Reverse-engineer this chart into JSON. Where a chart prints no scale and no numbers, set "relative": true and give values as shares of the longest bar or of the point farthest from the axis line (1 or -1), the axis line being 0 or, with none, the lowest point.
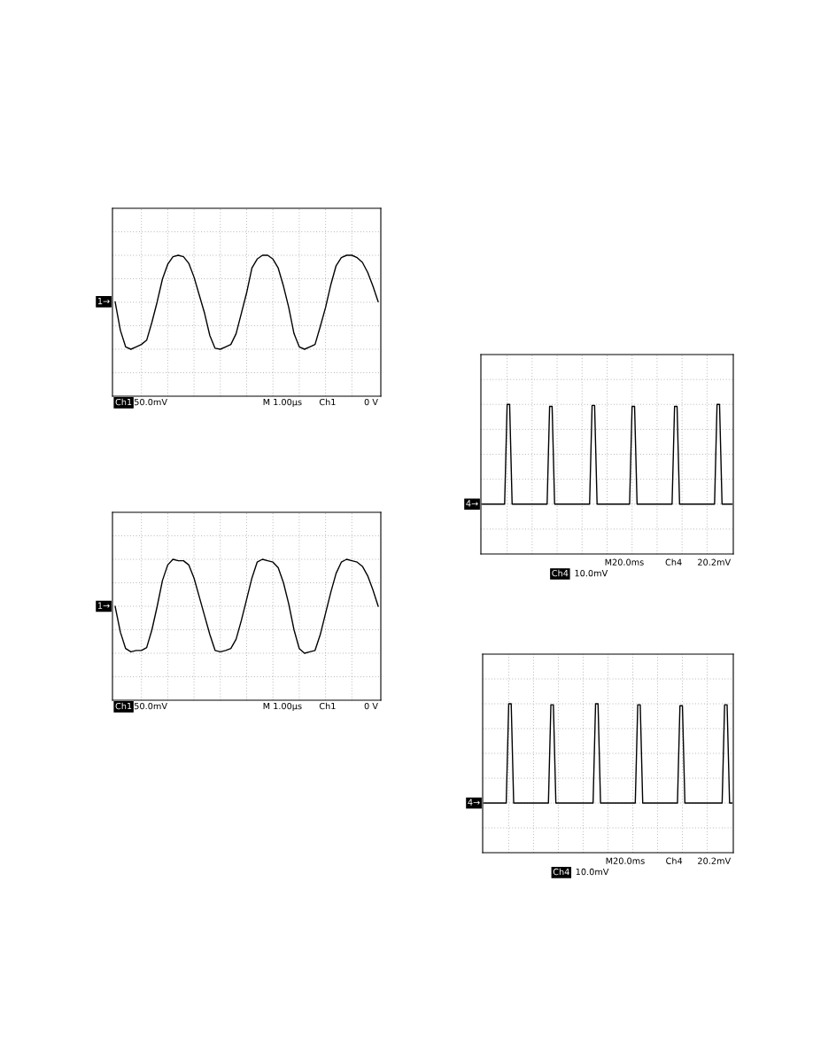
{
  "chart_data": [
    {
      "type": "line",
      "relative": true,
      "grid": true,
      "color": "#000000",
      "categories": [
        null,
        null,
        null,
        null,
        null,
        null,
        null,
        null,
        null,
        null,
        null,
        null,
        null,
        null,
        null,
        null,
        null,
        null,
        null,
        null,
        null,
        null,
        null,
        null,
        null,
        null,
        null,
        null,
        null,
        null,
        null,
        null,
        null,
        null,
        null,
        null,
        null,
        null,
        null,
        null,
        null,
        null,
        null,
        null,
        null,
        null,
        null,
        null,
        null,
        null,
        null
      ],
      "values": [
        0,
        -0.6,
        -0.95,
        -1,
        -0.95,
        -0.9,
        -0.81,
        -0.43,
        0,
        0.48,
        0.79,
        0.95,
        0.98,
        0.95,
        0.81,
        0.52,
        0.14,
        -0.24,
        -0.71,
        -0.98,
        -1,
        -0.95,
        -0.9,
        -0.67,
        -0.24,
        0.19,
        0.71,
        0.9,
        0.98,
        0.98,
        0.9,
        0.71,
        0.33,
        -0.12,
        -0.67,
        -0.95,
        -1,
        -0.95,
        -0.9,
        -0.52,
        -0.12,
        0.36,
        0.76,
        0.93,
        0.98,
        0.98,
        0.93,
        0.83,
        0.62,
        0.33,
        0
      ],
      "annotations": [
        "Ch1",
        "50.0mV",
        "M 1.00µs",
        "Ch1",
        "0 V",
        {
          "text": "1→",
          "y": 0
        }
      ]
    },
    {
      "type": "line",
      "relative": true,
      "grid": true,
      "color": "#000000",
      "categories": [
        null,
        null,
        null,
        null,
        null,
        null,
        null,
        null,
        null,
        null,
        null,
        null,
        null,
        null,
        null,
        null,
        null,
        null,
        null,
        null,
        null,
        null,
        null,
        null,
        null,
        null,
        null,
        null,
        null,
        null,
        null,
        null,
        null,
        null,
        null,
        null,
        null,
        null,
        null,
        null,
        null,
        null,
        null,
        null,
        null,
        null,
        null,
        null,
        null,
        null,
        null
      ],
      "values": [
        0,
        -0.55,
        -0.9,
        -0.97,
        -0.94,
        -0.94,
        -0.88,
        -0.5,
        0,
        0.55,
        0.88,
        1,
        0.97,
        0.97,
        0.88,
        0.6,
        0.2,
        -0.2,
        -0.6,
        -0.94,
        -0.97,
        -0.94,
        -0.9,
        -0.7,
        -0.3,
        0.15,
        0.6,
        0.94,
        1,
        0.97,
        0.94,
        0.82,
        0.5,
        0.05,
        -0.5,
        -0.9,
        -1,
        -0.97,
        -0.94,
        -0.6,
        -0.15,
        0.3,
        0.7,
        0.94,
        1,
        0.97,
        0.94,
        0.85,
        0.65,
        0.35,
        0
      ],
      "annotations": [
        "Ch1",
        "50.0mV",
        "M 1.00µs",
        "Ch1",
        "0 V",
        {
          "text": "1→",
          "y": 0
        }
      ]
    },
    {
      "type": "line",
      "relative": true,
      "grid": true,
      "color": "#000000",
      "categories": [
        null,
        null,
        null,
        null,
        null,
        null,
        null,
        null,
        null,
        null,
        null,
        null,
        null,
        null,
        null,
        null,
        null,
        null,
        null,
        null,
        null,
        null,
        null,
        null,
        null,
        null,
        null,
        null,
        null,
        null,
        null,
        null,
        null,
        null,
        null,
        null,
        null,
        null,
        null,
        null,
        null,
        null,
        null,
        null,
        null,
        null,
        null,
        null,
        null,
        null,
        null,
        null,
        null,
        null,
        null,
        null,
        null,
        null,
        null,
        null,
        null,
        null,
        null,
        null,
        null,
        null,
        null,
        null,
        null,
        null,
        null,
        null,
        null,
        null,
        null,
        null,
        null,
        null,
        null,
        null,
        null,
        null,
        null,
        null,
        null,
        null,
        null,
        null,
        null,
        null,
        null,
        null,
        null,
        null,
        null,
        null,
        null,
        null,
        null,
        null,
        null
      ],
      "values": [
        0,
        0,
        0,
        0,
        0,
        0,
        0,
        0,
        0,
        0,
        1,
        1,
        0,
        0,
        0,
        0,
        0,
        0,
        0,
        0,
        0,
        0,
        0,
        0,
        0,
        0,
        0,
        0.98,
        0.98,
        0,
        0,
        0,
        0,
        0,
        0,
        0,
        0,
        0,
        0,
        0,
        0,
        0,
        0,
        0,
        0.99,
        0.99,
        0,
        0,
        0,
        0,
        0,
        0,
        0,
        0,
        0,
        0,
        0,
        0,
        0,
        0,
        0.98,
        0.98,
        0,
        0,
        0,
        0,
        0,
        0,
        0,
        0,
        0,
        0,
        0,
        0,
        0,
        0,
        0,
        0.98,
        0.98,
        0,
        0,
        0,
        0,
        0,
        0,
        0,
        0,
        0,
        0,
        0,
        0,
        0,
        0,
        0,
        1,
        1,
        0,
        0,
        0,
        0,
        0
      ],
      "annotations": [
        "M20.0ms",
        "Ch4",
        "20.2mV",
        "Ch4",
        "10.0mV",
        {
          "text": "4→",
          "y": 0
        }
      ]
    },
    {
      "type": "line",
      "relative": true,
      "grid": true,
      "color": "#000000",
      "categories": [
        null,
        null,
        null,
        null,
        null,
        null,
        null,
        null,
        null,
        null,
        null,
        null,
        null,
        null,
        null,
        null,
        null,
        null,
        null,
        null,
        null,
        null,
        null,
        null,
        null,
        null,
        null,
        null,
        null,
        null,
        null,
        null,
        null,
        null,
        null,
        null,
        null,
        null,
        null,
        null,
        null,
        null,
        null,
        null,
        null,
        null,
        null,
        null,
        null,
        null,
        null,
        null,
        null,
        null,
        null,
        null,
        null,
        null,
        null,
        null,
        null,
        null,
        null,
        null,
        null,
        null,
        null,
        null,
        null,
        null,
        null,
        null,
        null,
        null,
        null,
        null,
        null,
        null,
        null,
        null,
        null,
        null,
        null,
        null,
        null,
        null,
        null,
        null,
        null,
        null,
        null,
        null,
        null,
        null,
        null,
        null,
        null,
        null,
        null,
        null,
        null
      ],
      "values": [
        0,
        0,
        0,
        0,
        0,
        0,
        0,
        0,
        0,
        0,
        1,
        1,
        0,
        0,
        0,
        0,
        0,
        0,
        0,
        0,
        0,
        0,
        0,
        0,
        0,
        0,
        0,
        0.99,
        0.99,
        0,
        0,
        0,
        0,
        0,
        0,
        0,
        0,
        0,
        0,
        0,
        0,
        0,
        0,
        0,
        0,
        1,
        1,
        0,
        0,
        0,
        0,
        0,
        0,
        0,
        0,
        0,
        0,
        0,
        0,
        0,
        0,
        0,
        0.99,
        0.99,
        0,
        0,
        0,
        0,
        0,
        0,
        0,
        0,
        0,
        0,
        0,
        0,
        0,
        0,
        0,
        0.98,
        0.98,
        0,
        0,
        0,
        0,
        0,
        0,
        0,
        0,
        0,
        0,
        0,
        0,
        0,
        0,
        0,
        0,
        0.99,
        0.99,
        0,
        0
      ],
      "annotations": [
        "M20.0ms",
        "Ch4",
        "20.2mV",
        "Ch4",
        "10.0mV",
        {
          "text": "4→",
          "y": 0
        }
      ]
    }
  ]
}
